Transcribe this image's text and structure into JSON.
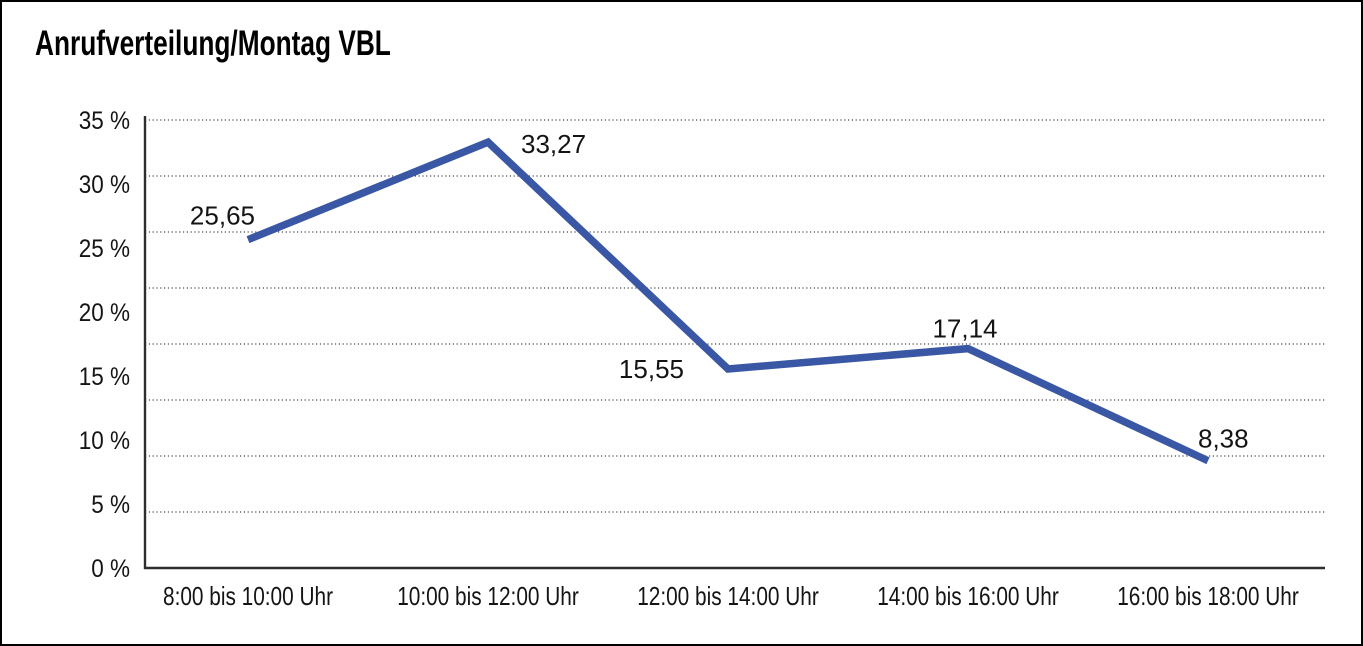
{
  "chart_data": {
    "type": "line",
    "title": "Anrufverteilung/Montag VBL",
    "categories": [
      "8:00 bis 10:00 Uhr",
      "10:00 bis 12:00 Uhr",
      "12:00 bis 14:00 Uhr",
      "14:00 bis 16:00 Uhr",
      "16:00 bis 18:00 Uhr"
    ],
    "values": [
      25.65,
      33.27,
      15.55,
      17.14,
      8.38
    ],
    "point_labels": [
      "25,65",
      "33,27",
      "15,55",
      "17,14",
      "8,38"
    ],
    "xlabel": "",
    "ylabel": "",
    "ylim": [
      0,
      35
    ],
    "ytick_values": [
      35,
      30,
      25,
      20,
      15,
      10,
      5,
      0
    ],
    "ytick_labels": [
      "35 %",
      "30 %",
      "25 %",
      "20 %",
      "15 %",
      "10 %",
      "5 %",
      "0 %"
    ],
    "grid": "horizontal-dotted",
    "legend": "none",
    "line_color": "#3A57A5",
    "axis_color": "#2E2E2E",
    "gridline_color": "#474747",
    "text_color": "#141414"
  }
}
